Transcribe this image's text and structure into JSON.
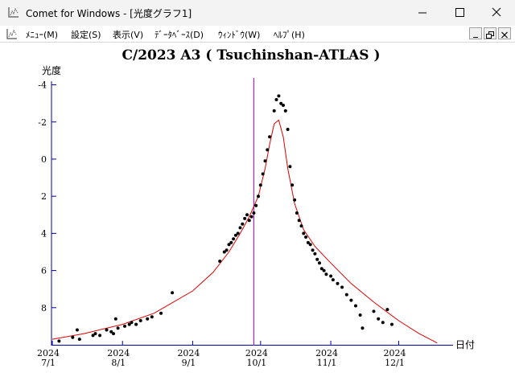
{
  "window": {
    "title": "Comet for Windows - [光度グラフ1]",
    "accent_line": "#aa00cc",
    "model_color": "#dd0000"
  },
  "menu": {
    "items": [
      {
        "label": "ﾒﾆｭｰ(M)"
      },
      {
        "label": "設定(S)"
      },
      {
        "label": "表示(V)"
      },
      {
        "label": "ﾃﾞｰﾀﾍﾞｰｽ(D)"
      },
      {
        "label": "ｳｨﾝﾄﾞｳ(W)"
      },
      {
        "label": "ﾍﾙﾌﾟ(H)"
      }
    ]
  },
  "chart_data": {
    "type": "scatter",
    "title": "C/2023 A3 ( Tsuchinshan-ATLAS )",
    "ylabel": "光度",
    "xlabel": "日付",
    "y_inverted": true,
    "ylim": [
      10.0,
      -4.5
    ],
    "xlim": [
      "2024-07-01",
      "2024-12-25"
    ],
    "y_ticks": [
      "-4",
      "-2",
      "0",
      "2",
      "4",
      "6",
      "8"
    ],
    "x_ticks": [
      {
        "year": "2024",
        "date": "7/1"
      },
      {
        "year": "2024",
        "date": "8/1"
      },
      {
        "year": "2024",
        "date": "9/1"
      },
      {
        "year": "2024",
        "date": "10/1"
      },
      {
        "year": "2024",
        "date": "11/1"
      },
      {
        "year": "2024",
        "date": "12/1"
      }
    ],
    "marker_line_date": "2024-09-28",
    "series": [
      {
        "kind": "model",
        "points": [
          [
            "2024-07-01",
            9.7
          ],
          [
            "2024-07-15",
            9.4
          ],
          [
            "2024-08-01",
            8.9
          ],
          [
            "2024-08-15",
            8.3
          ],
          [
            "2024-09-01",
            7.1
          ],
          [
            "2024-09-10",
            6.1
          ],
          [
            "2024-09-17",
            5.0
          ],
          [
            "2024-09-22",
            4.0
          ],
          [
            "2024-09-26",
            3.1
          ],
          [
            "2024-09-30",
            2.0
          ],
          [
            "2024-10-03",
            0.5
          ],
          [
            "2024-10-05",
            -0.8
          ],
          [
            "2024-10-07",
            -1.9
          ],
          [
            "2024-10-09",
            -2.1
          ],
          [
            "2024-10-11",
            -1.2
          ],
          [
            "2024-10-13",
            0.5
          ],
          [
            "2024-10-16",
            2.4
          ],
          [
            "2024-10-20",
            3.8
          ],
          [
            "2024-10-25",
            4.7
          ],
          [
            "2024-11-01",
            5.6
          ],
          [
            "2024-11-10",
            6.7
          ],
          [
            "2024-11-20",
            7.7
          ],
          [
            "2024-12-01",
            8.7
          ],
          [
            "2024-12-10",
            9.4
          ],
          [
            "2024-12-18",
            9.9
          ]
        ]
      },
      {
        "kind": "observations",
        "points": [
          [
            "2024-07-04",
            9.8
          ],
          [
            "2024-07-10",
            9.6
          ],
          [
            "2024-07-12",
            9.2
          ],
          [
            "2024-07-13",
            9.7
          ],
          [
            "2024-07-19",
            9.5
          ],
          [
            "2024-07-20",
            9.4
          ],
          [
            "2024-07-22",
            9.5
          ],
          [
            "2024-07-25",
            9.2
          ],
          [
            "2024-07-27",
            9.3
          ],
          [
            "2024-07-28",
            9.4
          ],
          [
            "2024-07-29",
            8.6
          ],
          [
            "2024-07-30",
            9.1
          ],
          [
            "2024-08-02",
            9.0
          ],
          [
            "2024-08-04",
            8.9
          ],
          [
            "2024-08-05",
            8.8
          ],
          [
            "2024-08-07",
            8.9
          ],
          [
            "2024-08-09",
            8.7
          ],
          [
            "2024-08-12",
            8.6
          ],
          [
            "2024-08-14",
            8.5
          ],
          [
            "2024-08-18",
            8.3
          ],
          [
            "2024-08-23",
            7.2
          ],
          [
            "2024-09-13",
            5.5
          ],
          [
            "2024-09-15",
            5.0
          ],
          [
            "2024-09-16",
            4.9
          ],
          [
            "2024-09-17",
            4.6
          ],
          [
            "2024-09-18",
            4.5
          ],
          [
            "2024-09-19",
            4.3
          ],
          [
            "2024-09-20",
            4.1
          ],
          [
            "2024-09-21",
            4.0
          ],
          [
            "2024-09-22",
            3.7
          ],
          [
            "2024-09-23",
            3.5
          ],
          [
            "2024-09-24",
            3.2
          ],
          [
            "2024-09-25",
            3.0
          ],
          [
            "2024-09-26",
            3.3
          ],
          [
            "2024-09-27",
            3.1
          ],
          [
            "2024-09-28",
            2.9
          ],
          [
            "2024-09-29",
            2.5
          ],
          [
            "2024-09-30",
            2.0
          ],
          [
            "2024-10-01",
            1.4
          ],
          [
            "2024-10-02",
            0.8
          ],
          [
            "2024-10-03",
            0.1
          ],
          [
            "2024-10-04",
            -0.5
          ],
          [
            "2024-10-05",
            -1.2
          ],
          [
            "2024-10-07",
            -2.6
          ],
          [
            "2024-10-08",
            -3.2
          ],
          [
            "2024-10-09",
            -3.4
          ],
          [
            "2024-10-10",
            -3.0
          ],
          [
            "2024-10-11",
            -2.9
          ],
          [
            "2024-10-12",
            -2.6
          ],
          [
            "2024-10-13",
            -1.6
          ],
          [
            "2024-10-14",
            0.4
          ],
          [
            "2024-10-15",
            1.4
          ],
          [
            "2024-10-16",
            2.2
          ],
          [
            "2024-10-17",
            2.9
          ],
          [
            "2024-10-18",
            3.3
          ],
          [
            "2024-10-19",
            3.6
          ],
          [
            "2024-10-20",
            4.0
          ],
          [
            "2024-10-21",
            4.2
          ],
          [
            "2024-10-22",
            4.5
          ],
          [
            "2024-10-23",
            4.6
          ],
          [
            "2024-10-24",
            4.9
          ],
          [
            "2024-10-25",
            5.1
          ],
          [
            "2024-10-26",
            5.4
          ],
          [
            "2024-10-27",
            5.6
          ],
          [
            "2024-10-28",
            5.9
          ],
          [
            "2024-10-29",
            6.0
          ],
          [
            "2024-10-30",
            6.2
          ],
          [
            "2024-11-01",
            6.3
          ],
          [
            "2024-11-02",
            6.5
          ],
          [
            "2024-11-04",
            6.7
          ],
          [
            "2024-11-06",
            6.9
          ],
          [
            "2024-11-08",
            7.3
          ],
          [
            "2024-11-10",
            7.6
          ],
          [
            "2024-11-12",
            7.9
          ],
          [
            "2024-11-14",
            8.4
          ],
          [
            "2024-11-15",
            9.1
          ],
          [
            "2024-11-20",
            8.2
          ],
          [
            "2024-11-22",
            8.6
          ],
          [
            "2024-11-24",
            8.8
          ],
          [
            "2024-11-26",
            8.1
          ],
          [
            "2024-11-28",
            8.9
          ]
        ]
      }
    ]
  }
}
